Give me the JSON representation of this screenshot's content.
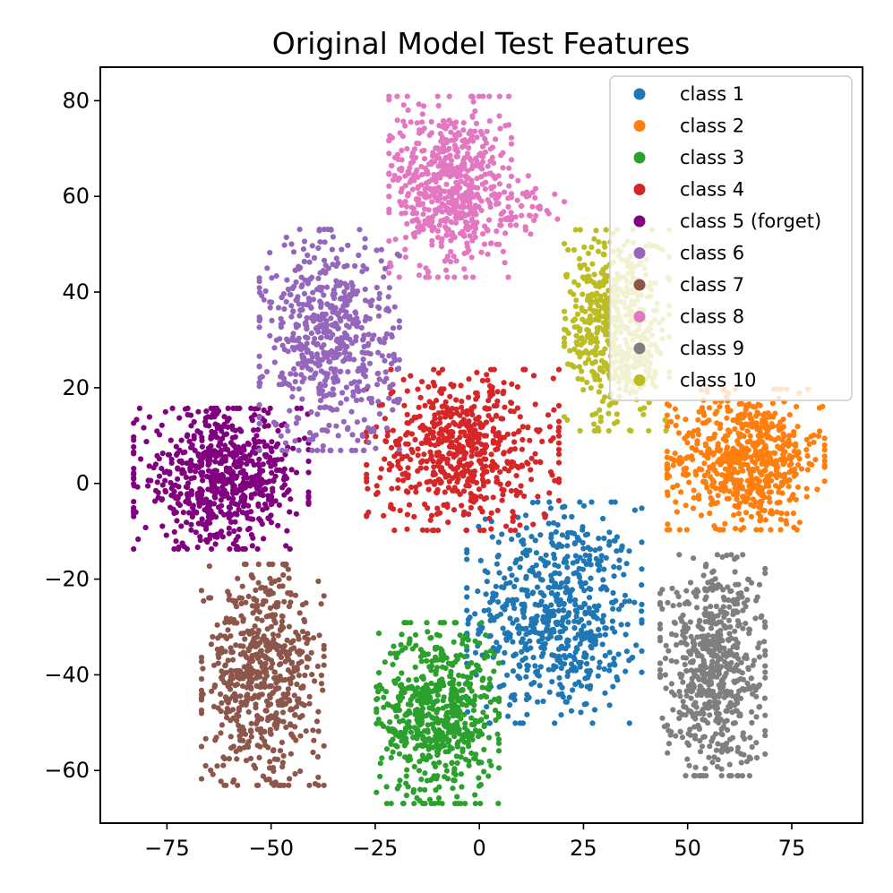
{
  "chart_data": {
    "type": "scatter",
    "title": "Original Model Test Features",
    "xlabel": "",
    "ylabel": "",
    "xlim": [
      -91,
      92
    ],
    "ylim": [
      -71,
      87
    ],
    "xticks": [
      -75,
      -50,
      -25,
      0,
      25,
      50,
      75
    ],
    "yticks": [
      -60,
      -40,
      -20,
      0,
      20,
      40,
      60,
      80
    ],
    "xtick_labels": [
      "−75",
      "−50",
      "−25",
      "0",
      "25",
      "50",
      "75"
    ],
    "ytick_labels": [
      "−60",
      "−40",
      "−20",
      "0",
      "20",
      "40",
      "60",
      "80"
    ],
    "grid": false,
    "legend_position": "top-right",
    "series": [
      {
        "name": "class 1",
        "color": "#1f77b4",
        "clusters": [
          {
            "center": [
              18,
              -27
            ],
            "spread": [
              10,
              11
            ],
            "count": 620
          },
          {
            "center": [
              26,
              -36
            ],
            "spread": [
              3,
              3
            ],
            "count": 25
          }
        ]
      },
      {
        "name": "class 2",
        "color": "#ff7f0e",
        "clusters": [
          {
            "center": [
              64,
              5
            ],
            "spread": [
              9,
              7
            ],
            "count": 650
          }
        ]
      },
      {
        "name": "class 3",
        "color": "#2ca02c",
        "clusters": [
          {
            "center": [
              -10,
              -48
            ],
            "spread": [
              7,
              9
            ],
            "count": 640
          }
        ]
      },
      {
        "name": "class 4",
        "color": "#d62728",
        "clusters": [
          {
            "center": [
              -4,
              7
            ],
            "spread": [
              11,
              8
            ],
            "count": 620
          }
        ]
      },
      {
        "name": "class 5 (forget)",
        "color": "#800080",
        "clusters": [
          {
            "center": [
              -62,
              1
            ],
            "spread": [
              10,
              7
            ],
            "count": 680
          }
        ]
      },
      {
        "name": "class 6",
        "color": "#9467bd",
        "clusters": [
          {
            "center": [
              -36,
              30
            ],
            "spread": [
              8,
              11
            ],
            "count": 600
          }
        ]
      },
      {
        "name": "class 7",
        "color": "#8c564b",
        "clusters": [
          {
            "center": [
              -52,
              -40
            ],
            "spread": [
              7,
              11
            ],
            "count": 620
          }
        ]
      },
      {
        "name": "class 8",
        "color": "#e377c2",
        "clusters": [
          {
            "center": [
              -7,
              62
            ],
            "spread": [
              7,
              9
            ],
            "count": 600
          },
          {
            "center": [
              12,
              58
            ],
            "spread": [
              4,
              3
            ],
            "count": 40
          }
        ]
      },
      {
        "name": "class 9",
        "color": "#7f7f7f",
        "clusters": [
          {
            "center": [
              56,
              -38
            ],
            "spread": [
              6,
              11
            ],
            "count": 620
          }
        ]
      },
      {
        "name": "class 10",
        "color": "#bcbd22",
        "clusters": [
          {
            "center": [
              33,
              32
            ],
            "spread": [
              6,
              10
            ],
            "count": 560
          }
        ]
      }
    ]
  }
}
